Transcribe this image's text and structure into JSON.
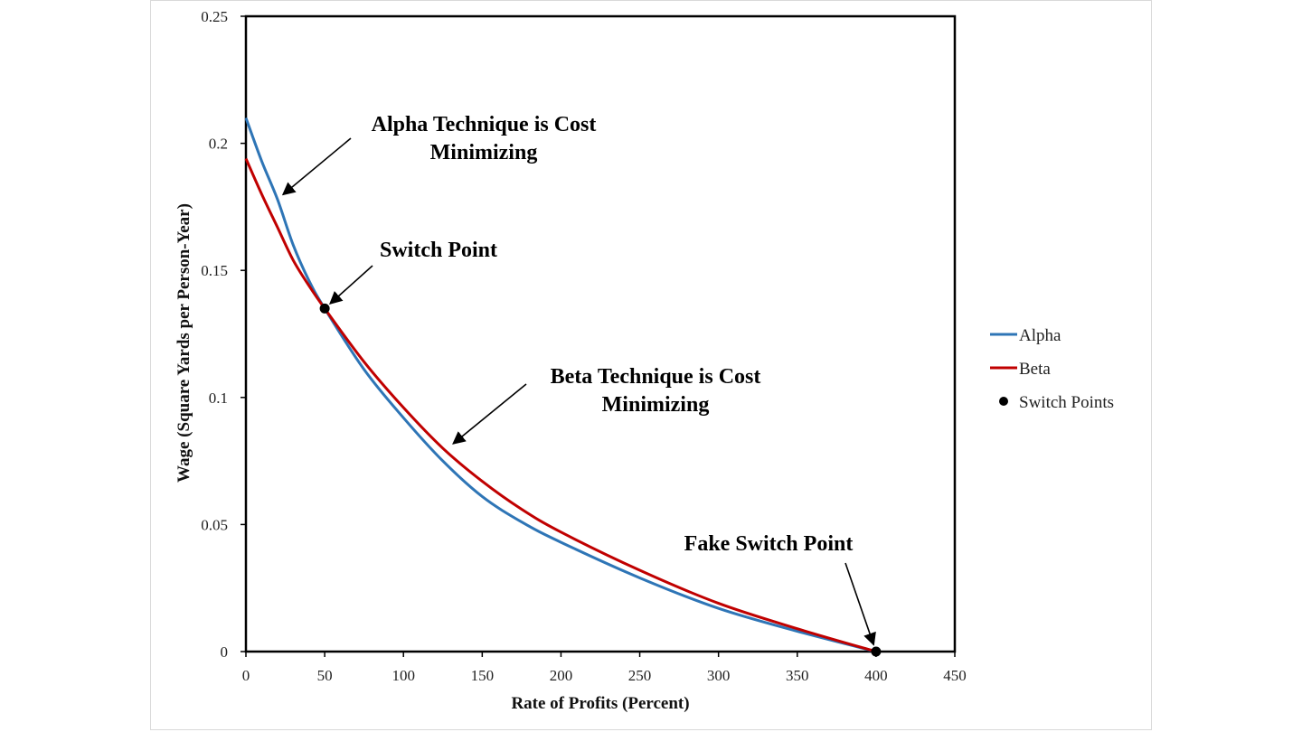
{
  "chart_data": {
    "type": "line",
    "xlabel": "Rate of Profits (Percent)",
    "ylabel": "Wage (Square Yards per Person-Year)",
    "xlim": [
      0,
      450
    ],
    "ylim": [
      0,
      0.25
    ],
    "xticks": [
      0,
      50,
      100,
      150,
      200,
      250,
      300,
      350,
      400,
      450
    ],
    "yticks": [
      0,
      0.05,
      0.1,
      0.15,
      0.2,
      0.25
    ],
    "xtick_labels": [
      "0",
      "50",
      "100",
      "150",
      "200",
      "250",
      "300",
      "350",
      "400",
      "450"
    ],
    "ytick_labels": [
      "0",
      "0.05",
      "0.1",
      "0.15",
      "0.2",
      "0.25"
    ],
    "grid": false,
    "legend_position": "right",
    "series": [
      {
        "name": "Alpha",
        "color": "#2e75b6",
        "x": [
          0,
          10,
          20,
          30,
          40,
          50,
          75,
          100,
          125,
          150,
          175,
          200,
          250,
          300,
          350,
          400
        ],
        "y": [
          0.21,
          0.193,
          0.178,
          0.16,
          0.146,
          0.135,
          0.111,
          0.092,
          0.075,
          0.061,
          0.051,
          0.043,
          0.029,
          0.017,
          0.008,
          0.0
        ]
      },
      {
        "name": "Beta",
        "color": "#c00000",
        "x": [
          0,
          10,
          20,
          30,
          40,
          50,
          75,
          100,
          125,
          150,
          175,
          200,
          250,
          300,
          350,
          400
        ],
        "y": [
          0.194,
          0.18,
          0.167,
          0.154,
          0.144,
          0.135,
          0.114,
          0.096,
          0.08,
          0.067,
          0.056,
          0.047,
          0.032,
          0.019,
          0.009,
          0.0
        ]
      },
      {
        "name": "Switch Points",
        "color": "#000000",
        "marker": "circle",
        "x": [
          50,
          400
        ],
        "y": [
          0.135,
          0.0
        ]
      }
    ],
    "annotations": [
      {
        "lines": [
          "Alpha Technique is Cost",
          "Minimizing"
        ],
        "target": [
          20,
          0.178
        ]
      },
      {
        "lines": [
          "Switch Point"
        ],
        "target": [
          50,
          0.135
        ]
      },
      {
        "lines": [
          "Beta Technique is Cost",
          "Minimizing"
        ],
        "target": [
          128,
          0.08
        ]
      },
      {
        "lines": [
          "Fake Switch Point"
        ],
        "target": [
          400,
          0.0
        ]
      }
    ]
  }
}
